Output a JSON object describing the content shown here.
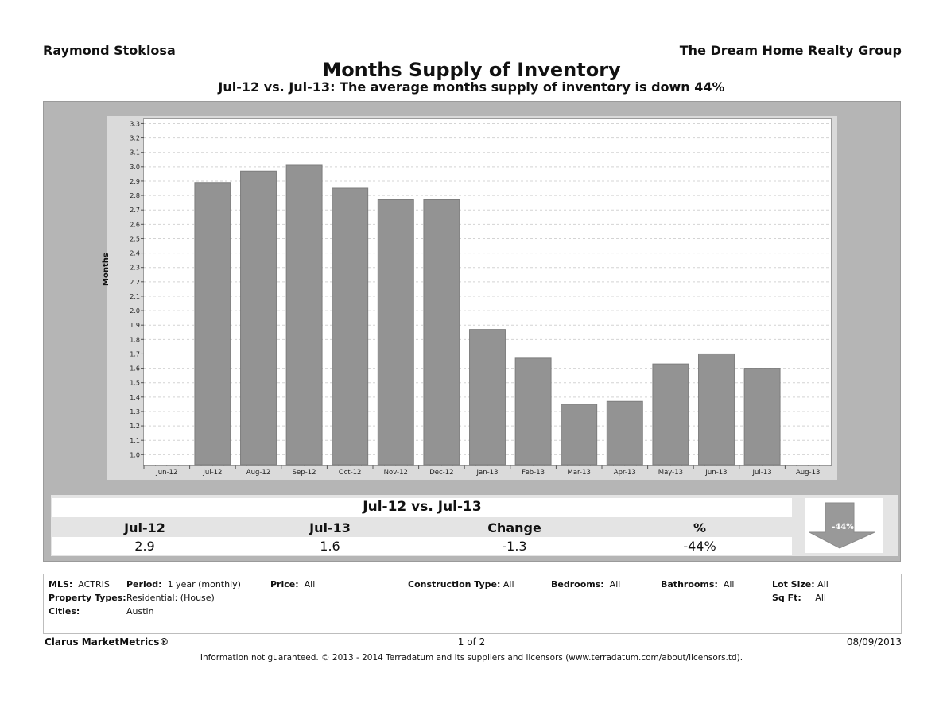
{
  "header": {
    "agent": "Raymond Stoklosa",
    "company": "The Dream Home Realty Group",
    "title": "Months Supply of Inventory",
    "subtitle": "Jul-12 vs. Jul-13:  The average months supply of inventory is down 44%"
  },
  "chart_data": {
    "type": "bar",
    "ylabel": "Months",
    "xlabel": "",
    "ylim": [
      0.93,
      3.33
    ],
    "yticks": [
      "1.0",
      "1.1",
      "1.2",
      "1.3",
      "1.4",
      "1.5",
      "1.6",
      "1.7",
      "1.8",
      "1.9",
      "2.0",
      "2.1",
      "2.2",
      "2.3",
      "2.4",
      "2.5",
      "2.6",
      "2.7",
      "2.8",
      "2.9",
      "3.0",
      "3.1",
      "3.2",
      "3.3"
    ],
    "x_tick_labels": [
      "Jun-12",
      "Jul-12",
      "Aug-12",
      "Sep-12",
      "Oct-12",
      "Nov-12",
      "Dec-12",
      "Jan-13",
      "Feb-13",
      "Mar-13",
      "Apr-13",
      "May-13",
      "Jun-13",
      "Jul-13",
      "Aug-13"
    ],
    "categories": [
      "Jul-12",
      "Aug-12",
      "Sep-12",
      "Oct-12",
      "Nov-12",
      "Dec-12",
      "Jan-13",
      "Feb-13",
      "Mar-13",
      "Apr-13",
      "May-13",
      "Jun-13",
      "Jul-13"
    ],
    "values": [
      2.89,
      2.97,
      3.01,
      2.85,
      2.77,
      2.77,
      1.87,
      1.67,
      1.35,
      1.37,
      1.63,
      1.7,
      1.6
    ],
    "grid": true,
    "bar_color": "#939393"
  },
  "summary": {
    "title": "Jul-12 vs. Jul-13",
    "col1_head": "Jul-12",
    "col2_head": "Jul-13",
    "col3_head": "Change",
    "col4_head": "%",
    "col1_val": "2.9",
    "col2_val": "1.6",
    "col3_val": "-1.3",
    "col4_val": "-44%",
    "arrow_label": "-44%",
    "arrow_icon": "down-arrow-icon"
  },
  "criteria": {
    "mls_label": "MLS:",
    "mls_value": "ACTRIS",
    "period_label": "Period:",
    "period_value": "1 year (monthly)",
    "price_label": "Price:",
    "price_value": "All",
    "construction_label": "Construction Type:",
    "construction_value": "All",
    "bedrooms_label": "Bedrooms:",
    "bedrooms_value": "All",
    "bathrooms_label": "Bathrooms:",
    "bathrooms_value": "All",
    "lotsize_label": "Lot Size:",
    "lotsize_value": "All",
    "proptypes_label": "Property Types:",
    "proptypes_value": "Residential: (House)",
    "sqft_label": "Sq Ft:",
    "sqft_value": "All",
    "cities_label": "Cities:",
    "cities_value": "Austin"
  },
  "footer": {
    "brand": "Clarus MarketMetrics®",
    "page": "1 of 2",
    "date": "08/09/2013",
    "disclaimer": "Information not guaranteed.  © 2013 - 2014 Terradatum and its suppliers and licensors (www.terradatum.com/about/licensors.td)."
  }
}
